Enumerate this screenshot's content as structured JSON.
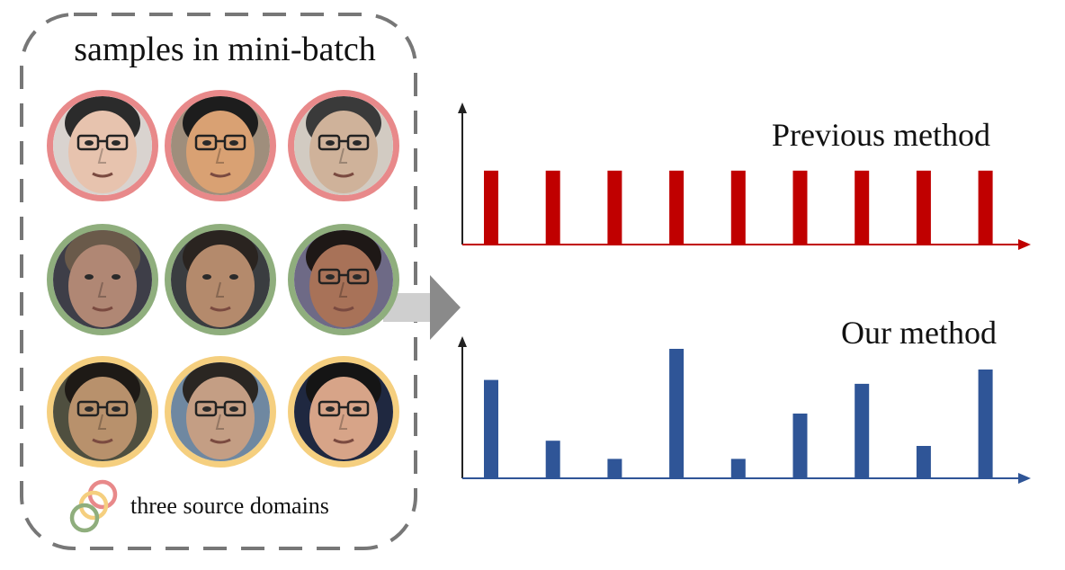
{
  "panel": {
    "title": "samples in mini-batch",
    "legend_label": "three source domains"
  },
  "domain_colors": [
    "#e8898a",
    "#8fae7d",
    "#f5cf7f"
  ],
  "faces": [
    {
      "domain": 0,
      "skin": "#e7c3ae",
      "bg": "#d9d3cf",
      "hair": "#2b2b2b",
      "glasses": true
    },
    {
      "domain": 0,
      "skin": "#d9a173",
      "bg": "#9f8e7c",
      "hair": "#1d1d1d",
      "glasses": true
    },
    {
      "domain": 0,
      "skin": "#cfb29a",
      "bg": "#d2cbc2",
      "hair": "#3a3a3a",
      "glasses": true
    },
    {
      "domain": 1,
      "skin": "#b08774",
      "bg": "#3e3e48",
      "hair": "#6a5a4a",
      "glasses": false
    },
    {
      "domain": 1,
      "skin": "#b48a6c",
      "bg": "#3a3d40",
      "hair": "#2a2420",
      "glasses": false
    },
    {
      "domain": 1,
      "skin": "#a87258",
      "bg": "#6e6a86",
      "hair": "#1e1816",
      "glasses": true
    },
    {
      "domain": 2,
      "skin": "#b8916c",
      "bg": "#4f4f3f",
      "hair": "#1e1a16",
      "glasses": true
    },
    {
      "domain": 2,
      "skin": "#c49e84",
      "bg": "#6f88a1",
      "hair": "#2a2622",
      "glasses": true
    },
    {
      "domain": 2,
      "skin": "#d7a488",
      "bg": "#1f2840",
      "hair": "#151515",
      "glasses": true
    }
  ],
  "chart_data": [
    {
      "type": "bar",
      "title": "Previous method",
      "color": "#c00000",
      "values": [
        1,
        1,
        1,
        1,
        1,
        1,
        1,
        1,
        1
      ],
      "ylim": [
        0,
        1.8
      ]
    },
    {
      "type": "bar",
      "title": "Our method",
      "color": "#2f5597",
      "values": [
        0.76,
        0.29,
        0.15,
        1.0,
        0.15,
        0.5,
        0.73,
        0.25,
        0.84
      ],
      "ylim": [
        0,
        1.0
      ]
    }
  ]
}
